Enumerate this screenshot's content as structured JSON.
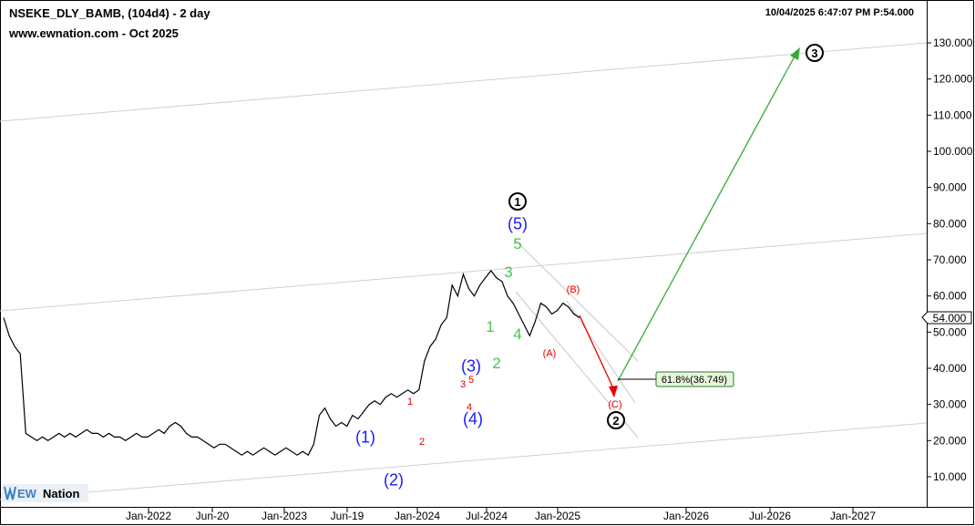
{
  "chart": {
    "symbol_title": "NSEKE_DLY_BAMB, (104d4) - 2 day",
    "source_subtitle": "www.ewnation.com  - Oct 2025",
    "timestamp_info": "10/04/2025 6:47:07 PM  P:54.000",
    "current_price_label": "54.000",
    "fib_label": "61.8%(36.749)",
    "logo_ew": "EW",
    "logo_nation": "Nation"
  },
  "chart_data": {
    "type": "line",
    "y_ticks": [
      "10.000",
      "20.000",
      "30.000",
      "40.000",
      "50.000",
      "60.000",
      "70.000",
      "80.000",
      "90.000",
      "100.000",
      "110.000",
      "120.000",
      "130.000"
    ],
    "ylim": [
      4,
      137
    ],
    "x_ticks": [
      "Jan-2022",
      "Jun-20",
      "Jan-2023",
      "Jun-19",
      "Jan-2024",
      "Jul-2024",
      "Jan-2025",
      "Jan-2026",
      "Jul-2026",
      "Jan-2027"
    ],
    "last_price": 54.0,
    "fib_retracement": {
      "ratio": "61.8%",
      "value": 36.749
    },
    "series": [
      {
        "values": [
          54,
          49,
          46,
          44,
          22,
          21,
          20,
          21,
          20,
          21,
          22,
          21,
          22,
          21,
          22,
          23,
          22,
          22,
          21,
          22,
          21,
          21,
          20,
          21,
          22,
          21,
          21,
          22,
          23,
          22,
          24,
          25,
          24,
          22,
          21,
          21,
          20,
          19,
          18,
          19,
          19,
          18,
          17,
          16,
          17,
          16,
          17,
          18,
          17,
          16,
          17,
          18,
          17,
          16,
          17,
          16,
          19,
          27,
          29,
          26,
          24,
          25,
          24,
          27,
          26,
          28,
          30,
          31,
          30,
          32,
          33,
          32,
          33,
          34,
          33,
          34,
          42,
          46,
          48,
          52,
          54,
          63,
          60,
          66,
          62,
          60,
          63,
          65,
          67,
          65,
          64,
          60,
          58,
          55,
          52,
          49,
          53,
          58,
          57,
          55,
          56,
          58,
          57,
          55,
          54
        ]
      }
    ],
    "wave_labels": [
      {
        "text": "1",
        "style": "circled"
      },
      {
        "text": "(5)",
        "color": "#1a1aff"
      },
      {
        "text": "5",
        "color": "#4cc34c"
      },
      {
        "text": "3",
        "color": "#4cc34c"
      },
      {
        "text": "1",
        "color": "#4cc34c"
      },
      {
        "text": "4",
        "color": "#4cc34c"
      },
      {
        "text": "2",
        "color": "#4cc34c"
      },
      {
        "text": "(3)",
        "color": "#1a1aff"
      },
      {
        "text": "(4)",
        "color": "#1a1aff"
      },
      {
        "text": "(1)",
        "color": "#1a1aff"
      },
      {
        "text": "(2)",
        "color": "#1a1aff"
      },
      {
        "text": "1",
        "color": "#e60000"
      },
      {
        "text": "2",
        "color": "#e60000"
      },
      {
        "text": "3",
        "color": "#e60000"
      },
      {
        "text": "5",
        "color": "#e60000"
      },
      {
        "text": "4",
        "color": "#e60000"
      },
      {
        "text": "(B)",
        "color": "#e60000"
      },
      {
        "text": "(A)",
        "color": "#e60000"
      },
      {
        "text": "(C)",
        "color": "#e60000"
      },
      {
        "text": "2",
        "style": "circled"
      },
      {
        "text": "3",
        "style": "circled"
      }
    ]
  }
}
